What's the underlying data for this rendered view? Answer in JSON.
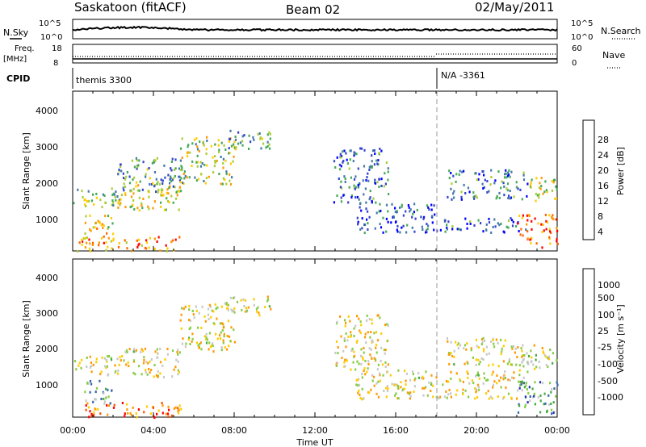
{
  "header": {
    "station": "Saskatoon (fitACF)",
    "beam": "Beam 02",
    "date": "02/May/2011"
  },
  "top_panels": {
    "nsky_label": "N.Sky",
    "nsearch_label": "N.Search",
    "noise_ticks_left": [
      "10^5",
      "10^0"
    ],
    "noise_ticks_right": [
      "10^5",
      "10^0"
    ],
    "freq_label_1": "Freq.",
    "freq_label_2": "[MHz]",
    "freq_ticks": [
      "18",
      "8"
    ],
    "nave_label": "Nave",
    "nave_ticks": [
      "60",
      "0"
    ],
    "cpid_label": "CPID",
    "cpid_1": "themis 3300",
    "cpid_2": "N/A  -3361"
  },
  "chart_data": [
    {
      "type": "heatmap",
      "name": "power",
      "ylabel": "Slant Range [km]",
      "colorbar_label": "Power [dB]",
      "colorbar_ticks": [
        "28",
        "24",
        "20",
        "16",
        "12",
        "8",
        "4"
      ],
      "colorbar_colors": [
        "#ff0000",
        "#ff6600",
        "#ff9900",
        "#ffcc00",
        "#aacc33",
        "#44aa55",
        "#4477aa",
        "#3344cc",
        "#0000ff"
      ],
      "y_ticks": [
        "4000",
        "3000",
        "2000",
        "1000"
      ],
      "ylim": [
        180,
        4500
      ],
      "xlim": [
        0,
        24
      ],
      "scatter_bands": [
        {
          "t0": 0.0,
          "t1": 2.4,
          "r0": 1350,
          "r1": 1900,
          "level": 0.45
        },
        {
          "t0": 2.2,
          "t1": 5.3,
          "r0": 1300,
          "r1": 2100,
          "level": 0.55
        },
        {
          "t0": 5.3,
          "t1": 8.0,
          "r0": 2000,
          "r1": 3300,
          "level": 0.5
        },
        {
          "t0": 7.5,
          "t1": 9.9,
          "r0": 2950,
          "r1": 3500,
          "level": 0.35
        },
        {
          "t0": 0.2,
          "t1": 5.4,
          "r0": 200,
          "r1": 600,
          "level": 0.75
        },
        {
          "t0": 0.5,
          "t1": 2.0,
          "r0": 550,
          "r1": 1200,
          "level": 0.6
        },
        {
          "t0": 2.2,
          "t1": 5.5,
          "r0": 1800,
          "r1": 2750,
          "level": 0.35
        },
        {
          "t0": 12.9,
          "t1": 15.6,
          "r0": 1500,
          "r1": 3000,
          "level": 0.25
        },
        {
          "t0": 14.0,
          "t1": 18.0,
          "r0": 700,
          "r1": 1500,
          "level": 0.2
        },
        {
          "t0": 18.0,
          "t1": 22.5,
          "r0": 700,
          "r1": 1100,
          "level": 0.25
        },
        {
          "t0": 18.5,
          "t1": 22.5,
          "r0": 1600,
          "r1": 2400,
          "level": 0.25
        },
        {
          "t0": 22.0,
          "t1": 24.0,
          "r0": 300,
          "r1": 1200,
          "level": 0.8
        },
        {
          "t0": 22.5,
          "t1": 24.0,
          "r0": 1500,
          "r1": 2200,
          "level": 0.55
        }
      ]
    },
    {
      "type": "heatmap",
      "name": "velocity",
      "ylabel": "Slant Range [km]",
      "colorbar_label": "Velocity  [m s⁻¹]",
      "colorbar_ticks": [
        "1000",
        "500",
        "100",
        "25",
        "-25",
        "-100",
        "-500",
        "-1000"
      ],
      "colorbar_colors": [
        "#2233bb",
        "#3366aa",
        "#44aa44",
        "#88cc44",
        "#c8c8c8",
        "#ffcc00",
        "#ff9900",
        "#ff5500",
        "#ff0000"
      ],
      "y_ticks": [
        "4000",
        "3000",
        "2000",
        "1000"
      ],
      "ylim": [
        180,
        4500
      ],
      "xlim": [
        0,
        24
      ],
      "scatter_bands": [
        {
          "t0": 0.0,
          "t1": 2.4,
          "r0": 1350,
          "r1": 1900,
          "level": 0.45
        },
        {
          "t0": 2.2,
          "t1": 5.3,
          "r0": 1300,
          "r1": 2100,
          "level": 0.45
        },
        {
          "t0": 5.3,
          "t1": 8.0,
          "r0": 2000,
          "r1": 3300,
          "level": 0.45
        },
        {
          "t0": 7.5,
          "t1": 9.9,
          "r0": 2950,
          "r1": 3500,
          "level": 0.45
        },
        {
          "t0": 0.2,
          "t1": 5.4,
          "r0": 200,
          "r1": 600,
          "level": 0.2
        },
        {
          "t0": 0.5,
          "t1": 2.0,
          "r0": 550,
          "r1": 1200,
          "level": 0.65
        },
        {
          "t0": 12.9,
          "t1": 15.6,
          "r0": 1500,
          "r1": 3000,
          "level": 0.45
        },
        {
          "t0": 14.0,
          "t1": 22.5,
          "r0": 700,
          "r1": 1500,
          "level": 0.45
        },
        {
          "t0": 18.5,
          "t1": 22.5,
          "r0": 1600,
          "r1": 2400,
          "level": 0.45
        },
        {
          "t0": 22.0,
          "t1": 24.0,
          "r0": 300,
          "r1": 1200,
          "level": 0.7
        },
        {
          "t0": 22.5,
          "t1": 24.0,
          "r0": 1500,
          "r1": 2200,
          "level": 0.5
        }
      ]
    }
  ],
  "x_axis": {
    "xlabel": "Time UT",
    "tick_labels": [
      "00:00",
      "04:00",
      "08:00",
      "12:00",
      "16:00",
      "20:00",
      "00:00"
    ]
  }
}
